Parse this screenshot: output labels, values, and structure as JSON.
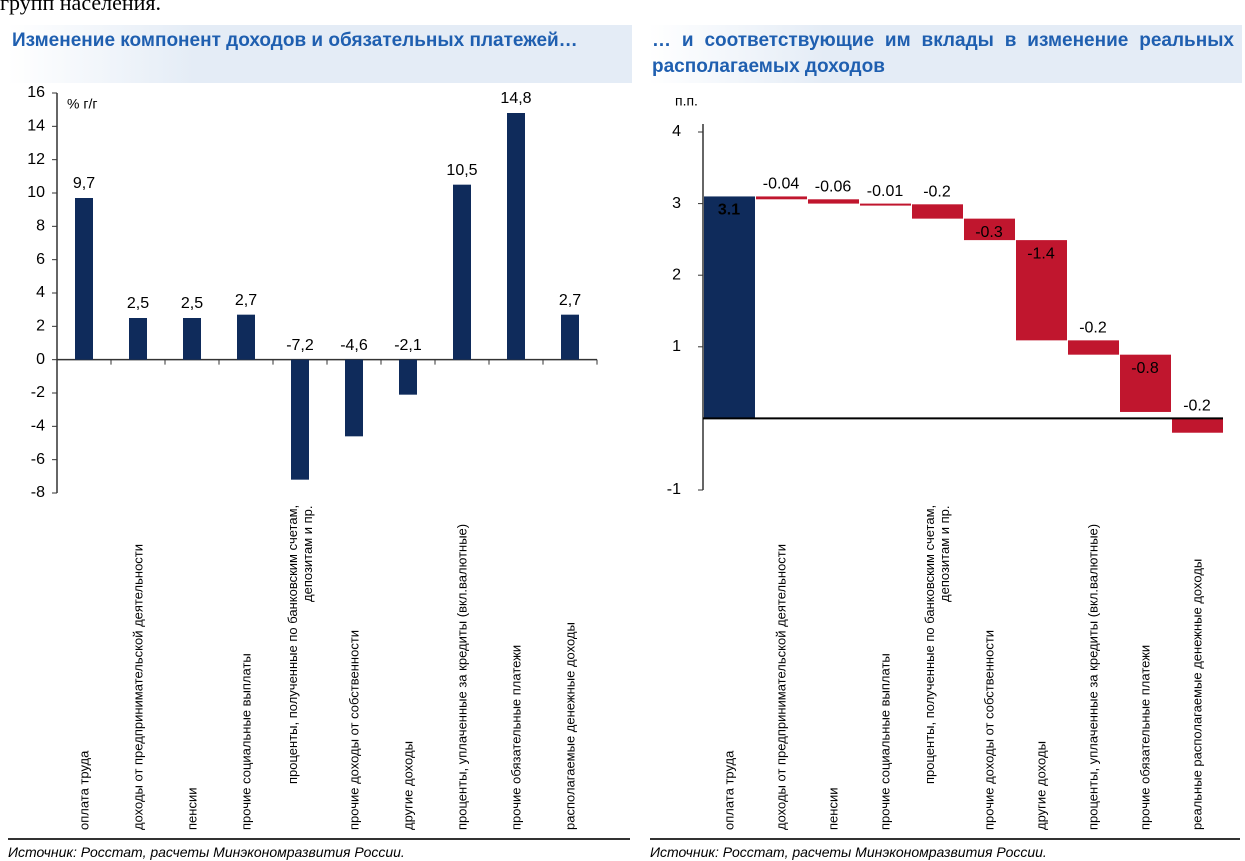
{
  "header_text": "групп населения.",
  "chart_data": [
    {
      "type": "bar",
      "title": "Изменение компонент доходов и обязательных платежей…",
      "unit_label": "% г/г",
      "categories": [
        "оплата труда",
        "доходы от предпринимательской деятельности",
        "пенсии",
        "прочие социальные выплаты",
        "проценты, полученные по банковским счетам, депозитам и пр.",
        "прочие доходы от собственности",
        "другие доходы",
        "проценты, уплаченные за кредиты (вкл.валютные)",
        "прочие обязательные платежи",
        "располагаемые денежные доходы"
      ],
      "values": [
        9.7,
        2.5,
        2.5,
        2.7,
        -7.2,
        -4.6,
        -2.1,
        10.5,
        14.8,
        2.7
      ],
      "value_labels": [
        "9,7",
        "2,5",
        "2,5",
        "2,7",
        "-7,2",
        "-4,6",
        "-2,1",
        "10,5",
        "14,8",
        "2,7"
      ],
      "color": "#0f2b5b",
      "ylim": [
        -8,
        16
      ],
      "yticks": [
        -8,
        -6,
        -4,
        -2,
        0,
        2,
        4,
        6,
        8,
        10,
        12,
        14,
        16
      ],
      "source": "Источник: Росстат, расчеты Минэкономразвития России."
    },
    {
      "type": "waterfall",
      "title": "… и соответствующие им вклады в изменение реальных располагаемых доходов",
      "unit_label": "п.п.",
      "categories": [
        "оплата труда",
        "доходы от предпринимательской деятельности",
        "пенсии",
        "прочие социальные выплаты",
        "проценты, полученные по банковским счетам, депозитам и пр.",
        "прочие доходы от собственности",
        "другие доходы",
        "проценты, уплаченные за кредиты (вкл.валютные)",
        "прочие обязательные платежи",
        "реальные располагаемые денежные доходы"
      ],
      "values": [
        3.1,
        -0.04,
        -0.06,
        -0.01,
        -0.2,
        -0.3,
        -1.4,
        -0.2,
        -0.8,
        -0.2
      ],
      "total_indices": [
        0,
        9
      ],
      "positive_color": "#0f2b5b",
      "negative_color": "#c0162e",
      "ylim": [
        -1,
        4
      ],
      "yticks": [
        -1,
        1,
        2,
        3,
        4
      ],
      "source": "Источник: Росстат, расчеты Минэкономразвития России."
    }
  ]
}
